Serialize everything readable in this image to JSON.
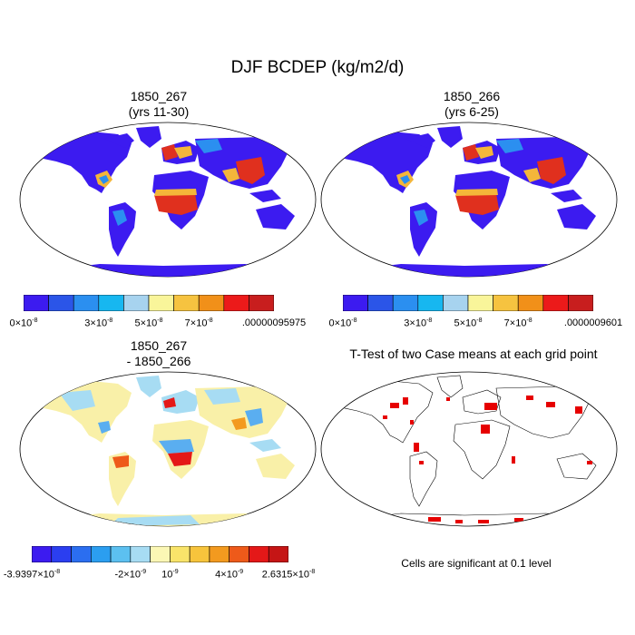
{
  "figure_title": "DJF BCDEP (kg/m2/d)",
  "panels": [
    {
      "id": "p1",
      "title_line1": "1850_267",
      "title_line2": "(yrs 11-30)"
    },
    {
      "id": "p2",
      "title_line1": "1850_266",
      "title_line2": "(yrs 6-25)"
    },
    {
      "id": "p3",
      "title_line1": "1850_267",
      "title_line2": "- 1850_266"
    },
    {
      "id": "p4",
      "title_line1": "T-Test of two Case means at each grid point",
      "title_line2": ""
    }
  ],
  "colorbars": {
    "cb1": {
      "colors": [
        "#3c1bf0",
        "#2b55e8",
        "#2b8ff0",
        "#17b7f0",
        "#a7d3ef",
        "#f9f59a",
        "#f6c340",
        "#f19019",
        "#ec1a1a",
        "#c81e1e"
      ],
      "labels": [
        {
          "text": "0×10",
          "sup": "-8",
          "at": 0
        },
        {
          "text": "3×10",
          "sup": "-8",
          "at": 3
        },
        {
          "text": "5×10",
          "sup": "-8",
          "at": 5
        },
        {
          "text": "7×10",
          "sup": "-8",
          "at": 7
        },
        {
          "text": ".00000095975",
          "sup": "",
          "at": 10
        }
      ]
    },
    "cb2": {
      "colors": [
        "#3c1bf0",
        "#2b55e8",
        "#2b8ff0",
        "#17b7f0",
        "#a7d3ef",
        "#f9f59a",
        "#f6c340",
        "#f19019",
        "#ec1a1a",
        "#c81e1e"
      ],
      "labels": [
        {
          "text": "0×10",
          "sup": "-8",
          "at": 0
        },
        {
          "text": "3×10",
          "sup": "-8",
          "at": 3
        },
        {
          "text": "5×10",
          "sup": "-8",
          "at": 5
        },
        {
          "text": "7×10",
          "sup": "-8",
          "at": 7
        },
        {
          "text": ".0000009601",
          "sup": "",
          "at": 10
        }
      ]
    },
    "cb3": {
      "colors": [
        "#3c1bf0",
        "#2b3ef0",
        "#2b6ef0",
        "#2b9ef0",
        "#5cc0f0",
        "#a7dcf3",
        "#fbf7b5",
        "#f9e46a",
        "#f7c43c",
        "#f39a1f",
        "#ee5a1a",
        "#e41818",
        "#c51515"
      ],
      "labels": [
        {
          "text": "-3.9397×10",
          "sup": "-8",
          "at": 0
        },
        {
          "text": "-2×10",
          "sup": "-9",
          "at": 5
        },
        {
          "text": "10",
          "sup": "-9",
          "at": 7
        },
        {
          "text": "4×10",
          "sup": "-9",
          "at": 10
        },
        {
          "text": "2.6315×10",
          "sup": "-8",
          "at": 13
        }
      ]
    }
  },
  "significance_note": "Cells are significant at 0.1 level",
  "colors": {
    "high_dep": "#e0301e",
    "mid_dep": "#f4b63a",
    "low_dep": "#3c1bf0",
    "diff_bg": "#f9f0a8",
    "diff_blue": "#5aaef0",
    "sig_red": "#e60000"
  }
}
